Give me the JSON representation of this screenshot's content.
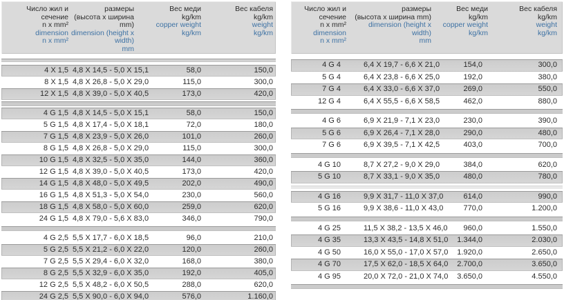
{
  "colors": {
    "accent_blue": "#3e72a4",
    "text": "#2b2b2b",
    "header_gray": "#dadada",
    "row_gray": "#d1d1d1",
    "separator_gray": "#cbcbcb"
  },
  "tables": [
    {
      "id": "left",
      "header": {
        "columns": [
          {
            "name": "cores-section",
            "black": [
              "Число жил и",
              "сечение",
              "n x mm²"
            ],
            "blue": [
              "dimension",
              "n x mm²"
            ]
          },
          {
            "name": "dimensions",
            "black": [
              "размеры",
              "(высота x ширина",
              "mm)"
            ],
            "blue": [
              "dimension (height x",
              "width)",
              "mm"
            ]
          },
          {
            "name": "copper-weight",
            "black": [
              "Вес меди",
              "kg/km"
            ],
            "blue": [
              "copper weight",
              "kg/km"
            ]
          },
          {
            "name": "cable-weight",
            "black": [
              "Вес кабеля",
              "kg/km"
            ],
            "blue": [
              "weight",
              "kg/km"
            ]
          }
        ]
      },
      "groups": [
        {
          "first_shaded": true,
          "separator_after": "bar",
          "rows": [
            [
              "4 X 1,5",
              "4,8 X 14,5 - 5,0 X 15,1",
              "58,0",
              "150,0"
            ],
            [
              "8 X 1,5",
              "4,8 X 26,8 - 5,0 X 29,0",
              "115,0",
              "300,0"
            ],
            [
              "12 X 1,5",
              "4,8 X 39,0 - 5,0 X 40,5",
              "173,0",
              "420,0"
            ]
          ]
        },
        {
          "first_shaded": true,
          "separator_after": "bar",
          "rows": [
            [
              "4 G 1,5",
              "4,8 X 14,5 - 5,0 X 15,1",
              "58,0",
              "150,0"
            ],
            [
              "5 G 1,5",
              "4,8 X 17,4 - 5,0 X 18,1",
              "72,0",
              "180,0"
            ],
            [
              "7 G 1,5",
              "4,8 X 23,9 - 5,0 X 26,0",
              "101,0",
              "260,0"
            ],
            [
              "8 G 1,5",
              "4,8 X 26,8 - 5,0 X 29,0",
              "115,0",
              "300,0"
            ],
            [
              "10 G 1,5",
              "4,8 X 32,5 - 5,0 X 35,0",
              "144,0",
              "360,0"
            ],
            [
              "12 G 1,5",
              "4,8 X 39,0 - 5,0 X 40,5",
              "173,0",
              "420,0"
            ],
            [
              "14 G 1,5",
              "4,8 X 48,0 - 5,0 X 49,5",
              "202,0",
              "490,0"
            ],
            [
              "16 G 1,5",
              "4,8 X 51,3 - 5,0 X 54,0",
              "230,0",
              "560,0"
            ],
            [
              "18 G 1,5",
              "4,8 X 58,0 - 5,0 X 60,0",
              "259,0",
              "620,0"
            ],
            [
              "24 G 1,5",
              "4,8 X 79,0 - 5,6 X 83,0",
              "346,0",
              "790,0"
            ]
          ]
        },
        {
          "first_shaded": false,
          "separator_after": "none",
          "rows": [
            [
              "4 G 2,5",
              "5,5 X 17,7 - 6,0 X 18,5",
              "96,0",
              "210,0"
            ],
            [
              "5 G 2,5",
              "5,5 X 21,2 - 6,0 X 22,0",
              "120,0",
              "260,0"
            ],
            [
              "7 G 2,5",
              "5,5 X 29,4 - 6,0 X 32,0",
              "168,0",
              "380,0"
            ],
            [
              "8 G 2,5",
              "5,5 X 32,9 - 6,0 X 35,0",
              "192,0",
              "405,0"
            ],
            [
              "12 G 2,5",
              "5,5 X 48,2 - 6,0 X 50,5",
              "288,0",
              "620,0"
            ],
            [
              "24 G 2,5",
              "5,5 X 90,0 - 6,0 X 94,0",
              "576,0",
              "1.160,0"
            ]
          ]
        }
      ]
    },
    {
      "id": "right",
      "header": {
        "columns": [
          {
            "name": "cores-section",
            "black": [
              "Число жил и",
              "сечение",
              "n x mm²"
            ],
            "blue": [
              "dimension",
              "n x mm²"
            ]
          },
          {
            "name": "dimensions",
            "black": [
              "размеры",
              "(высота x ширина mm)"
            ],
            "blue": [
              "dimension (height x",
              "width)",
              "mm"
            ]
          },
          {
            "name": "copper-weight",
            "black": [
              "Вес меди",
              "kg/km"
            ],
            "blue": [
              "copper weight",
              "kg/km"
            ]
          },
          {
            "name": "cable-weight",
            "black": [
              "Вес кабеля",
              "kg/km"
            ],
            "blue": [
              "weight",
              "kg/km"
            ]
          }
        ]
      },
      "groups": [
        {
          "first_shaded": true,
          "separator_after": "bar",
          "rows": [
            [
              "4 G 4",
              "6,4 X 19,7 - 6,6 X 21,0",
              "154,0",
              "300,0"
            ],
            [
              "5 G 4",
              "6,4 X 23,8 - 6,6 X 25,0",
              "192,0",
              "380,0"
            ],
            [
              "7 G 4",
              "6,4 X 33,0 - 6,6 X 37,0",
              "269,0",
              "550,0"
            ],
            [
              "12 G 4",
              "6,4 X 55,5 - 6,6 X 58,5",
              "462,0",
              "880,0"
            ]
          ]
        },
        {
          "first_shaded": false,
          "separator_after": "bar",
          "rows": [
            [
              "4 G 6",
              "6,9 X 21,9 - 7,1 X 23,0",
              "230,0",
              "390,0"
            ],
            [
              "5 G 6",
              "6,9 X 26,4 - 7,1 X 28,0",
              "290,0",
              "480,0"
            ],
            [
              "7 G 6",
              "6,9 X 39,5 - 7,1 X 42,5",
              "403,0",
              "700,0"
            ]
          ]
        },
        {
          "first_shaded": false,
          "separator_after": "light",
          "rows": [
            [
              "4 G 10",
              "8,7 X 27,2 - 9,0 X 29,0",
              "384,0",
              "620,0"
            ],
            [
              "5 G 10",
              "8,7 X 33,1 - 9,0 X 35,0",
              "480,0",
              "780,0"
            ]
          ]
        },
        {
          "first_shaded": true,
          "separator_after": "bar",
          "rows": [
            [
              "4 G 16",
              "9,9 X 31,7 - 11,0 X 37,0",
              "614,0",
              "990,0"
            ],
            [
              "5 G 16",
              "9,9 X 38,6 - 11,0 X 43,0",
              "770,0",
              "1.200,0"
            ]
          ]
        },
        {
          "first_shaded": false,
          "separator_after": "bar",
          "rows": [
            [
              "4 G 25",
              "11,5 X 38,2 - 13,5 X 46,0",
              "960,0",
              "1.550,0"
            ],
            [
              "4 G 35",
              "13,3 X 43,5 - 14,8 X 51,0",
              "1.344,0",
              "2.030,0"
            ],
            [
              "4 G 50",
              "16,0 X 55,0 - 17,0 X 57,0",
              "1.920,0",
              "2.650,0"
            ],
            [
              "4 G 70",
              "17,5 X 62,0 - 18,5 X 64,0",
              "2.700,0",
              "3.650,0"
            ],
            [
              "4 G 95",
              "20,0 X 72,0 - 21,0 X 74,0",
              "3.650,0",
              "4.550,0"
            ]
          ]
        }
      ]
    }
  ]
}
